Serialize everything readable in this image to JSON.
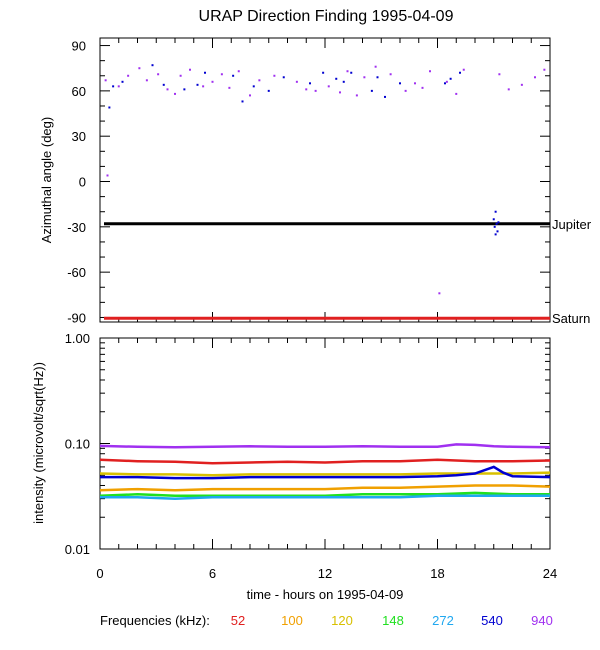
{
  "title": "URAP Direction Finding  1995-04-09",
  "xlabel": "time - hours on 1995-04-09",
  "x_ticks": [
    "0",
    "6",
    "12",
    "18",
    "24"
  ],
  "legend": {
    "label": "Frequencies (kHz):",
    "items": [
      {
        "name": "52",
        "color": "#e02020"
      },
      {
        "name": "100",
        "color": "#f0a000"
      },
      {
        "name": "120",
        "color": "#d8c000"
      },
      {
        "name": "148",
        "color": "#20e020"
      },
      {
        "name": "272",
        "color": "#20a8f0"
      },
      {
        "name": "540",
        "color": "#0000d0"
      },
      {
        "name": "940",
        "color": "#a030f0"
      }
    ]
  },
  "chart_data": [
    {
      "type": "scatter",
      "ylabel": "Azimuthal angle (deg)",
      "xlim": [
        0,
        24
      ],
      "ylim": [
        -93,
        95
      ],
      "y_ticks": [
        "90",
        "60",
        "30",
        "0",
        "-30",
        "-60",
        "-90"
      ],
      "reference_lines": [
        {
          "name": "Jupiter",
          "y": -28,
          "color": "#000000"
        },
        {
          "name": "Saturn",
          "y": -90.5,
          "color": "#e02020"
        }
      ],
      "series": [
        {
          "name": "540",
          "color": "#0000d0",
          "points": [
            [
              0.5,
              49
            ],
            [
              0.7,
              63
            ],
            [
              1.2,
              66
            ],
            [
              2.8,
              77
            ],
            [
              3.4,
              64
            ],
            [
              4.5,
              61
            ],
            [
              5.2,
              64
            ],
            [
              5.6,
              72
            ],
            [
              7.1,
              70
            ],
            [
              7.6,
              53
            ],
            [
              8.2,
              63
            ],
            [
              9.0,
              60
            ],
            [
              9.8,
              69
            ],
            [
              11.2,
              65
            ],
            [
              11.9,
              72
            ],
            [
              12.6,
              68
            ],
            [
              13.0,
              66
            ],
            [
              13.4,
              72
            ],
            [
              14.5,
              60
            ],
            [
              14.8,
              69
            ],
            [
              15.2,
              56
            ],
            [
              16.0,
              65
            ],
            [
              18.4,
              65
            ],
            [
              18.7,
              68
            ],
            [
              19.2,
              72
            ],
            [
              21.0,
              -25
            ],
            [
              21.05,
              -30
            ],
            [
              21.1,
              -35
            ],
            [
              21.15,
              -28
            ],
            [
              21.2,
              -33
            ],
            [
              21.25,
              -27
            ],
            [
              21.1,
              -20
            ]
          ]
        },
        {
          "name": "940",
          "color": "#a030f0",
          "points": [
            [
              0.4,
              4
            ],
            [
              0.3,
              67
            ],
            [
              1.0,
              63
            ],
            [
              1.5,
              70
            ],
            [
              2.1,
              75
            ],
            [
              2.5,
              67
            ],
            [
              3.1,
              71
            ],
            [
              3.6,
              61
            ],
            [
              4.0,
              58
            ],
            [
              4.3,
              70
            ],
            [
              4.8,
              74
            ],
            [
              5.5,
              63
            ],
            [
              6.0,
              66
            ],
            [
              6.5,
              71
            ],
            [
              6.9,
              62
            ],
            [
              7.4,
              73
            ],
            [
              8.0,
              57
            ],
            [
              8.5,
              67
            ],
            [
              9.3,
              70
            ],
            [
              10.5,
              66
            ],
            [
              11.0,
              61
            ],
            [
              11.5,
              60
            ],
            [
              12.2,
              63
            ],
            [
              12.8,
              59
            ],
            [
              13.2,
              73
            ],
            [
              13.7,
              57
            ],
            [
              14.1,
              69
            ],
            [
              14.7,
              76
            ],
            [
              15.5,
              71
            ],
            [
              16.3,
              60
            ],
            [
              16.8,
              65
            ],
            [
              17.2,
              62
            ],
            [
              17.6,
              73
            ],
            [
              18.1,
              -74
            ],
            [
              18.5,
              66
            ],
            [
              19.0,
              58
            ],
            [
              19.4,
              74
            ],
            [
              21.3,
              71
            ],
            [
              21.8,
              61
            ],
            [
              22.5,
              64
            ],
            [
              23.2,
              69
            ],
            [
              23.7,
              74
            ]
          ]
        }
      ]
    },
    {
      "type": "line",
      "ylabel": "intensity (microvolt/sqrt(Hz))",
      "y_scale": "log",
      "ylim": [
        0.01,
        1.0
      ],
      "y_ticks": [
        "1.00",
        "0.10",
        "0.01"
      ],
      "series": [
        {
          "name": "940",
          "color": "#a030f0",
          "x": [
            0,
            2,
            4,
            6,
            8,
            10,
            12,
            14,
            16,
            18,
            19,
            20,
            21,
            22,
            24
          ],
          "y": [
            0.095,
            0.093,
            0.092,
            0.093,
            0.094,
            0.093,
            0.093,
            0.094,
            0.093,
            0.093,
            0.098,
            0.097,
            0.094,
            0.093,
            0.092
          ]
        },
        {
          "name": "52",
          "color": "#e02020",
          "x": [
            0,
            2,
            4,
            6,
            8,
            10,
            12,
            14,
            16,
            18,
            20,
            22,
            24
          ],
          "y": [
            0.07,
            0.068,
            0.067,
            0.065,
            0.066,
            0.067,
            0.066,
            0.068,
            0.068,
            0.07,
            0.068,
            0.068,
            0.069
          ]
        },
        {
          "name": "120",
          "color": "#d8c000",
          "x": [
            0,
            2,
            4,
            6,
            8,
            10,
            12,
            14,
            16,
            18,
            20,
            22,
            24
          ],
          "y": [
            0.052,
            0.051,
            0.051,
            0.05,
            0.051,
            0.051,
            0.051,
            0.051,
            0.051,
            0.052,
            0.052,
            0.052,
            0.053
          ]
        },
        {
          "name": "540",
          "color": "#0000d0",
          "x": [
            0,
            2,
            4,
            6,
            8,
            10,
            12,
            14,
            16,
            18,
            19,
            20,
            21,
            21.5,
            22,
            24
          ],
          "y": [
            0.048,
            0.048,
            0.047,
            0.047,
            0.048,
            0.048,
            0.048,
            0.048,
            0.048,
            0.049,
            0.05,
            0.052,
            0.06,
            0.053,
            0.049,
            0.048
          ]
        },
        {
          "name": "100",
          "color": "#f0a000",
          "x": [
            0,
            2,
            4,
            6,
            8,
            10,
            12,
            14,
            16,
            18,
            20,
            22,
            24
          ],
          "y": [
            0.036,
            0.037,
            0.036,
            0.037,
            0.037,
            0.037,
            0.037,
            0.038,
            0.038,
            0.039,
            0.04,
            0.04,
            0.039
          ]
        },
        {
          "name": "148",
          "color": "#20e020",
          "x": [
            0,
            2,
            4,
            6,
            8,
            10,
            12,
            14,
            16,
            18,
            20,
            22,
            24
          ],
          "y": [
            0.032,
            0.033,
            0.032,
            0.032,
            0.032,
            0.032,
            0.032,
            0.033,
            0.033,
            0.033,
            0.034,
            0.033,
            0.033
          ]
        },
        {
          "name": "272",
          "color": "#20a8f0",
          "x": [
            0,
            2,
            4,
            6,
            8,
            10,
            12,
            14,
            16,
            18,
            20,
            22,
            24
          ],
          "y": [
            0.031,
            0.031,
            0.03,
            0.031,
            0.031,
            0.031,
            0.031,
            0.031,
            0.031,
            0.032,
            0.032,
            0.032,
            0.032
          ]
        }
      ]
    }
  ]
}
